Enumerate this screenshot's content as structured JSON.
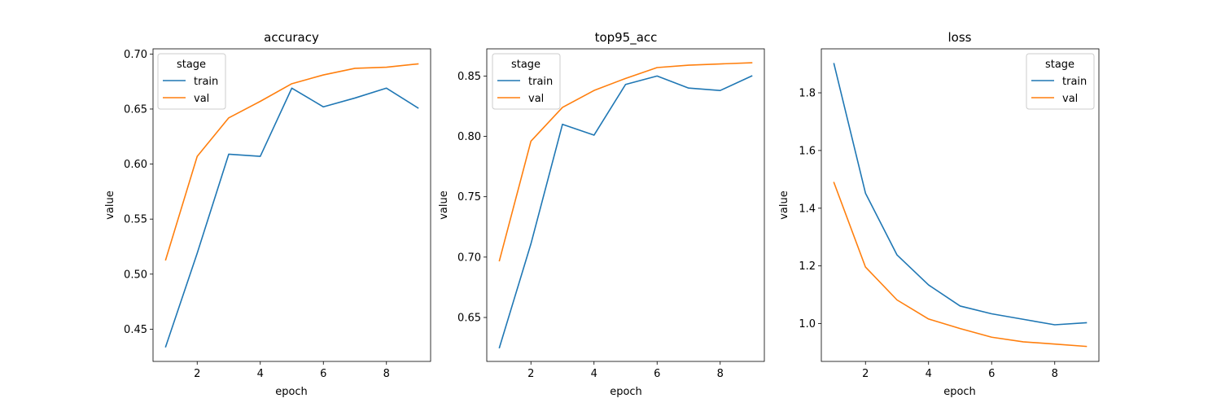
{
  "chart_data": [
    {
      "type": "line",
      "title": "accuracy",
      "xlabel": "epoch",
      "ylabel": "value",
      "xlim": [
        0.6,
        9.4
      ],
      "ylim": [
        0.4207,
        0.7047
      ],
      "xticks": [
        2,
        4,
        6,
        8
      ],
      "yticks": [
        0.45,
        0.5,
        0.55,
        0.6,
        0.65,
        0.7
      ],
      "ytick_labels": [
        "0.45",
        "0.50",
        "0.55",
        "0.60",
        "0.65",
        "0.70"
      ],
      "grid": false,
      "legend": {
        "title": "stage",
        "placement": "top-left"
      },
      "x": [
        1,
        2,
        3,
        4,
        5,
        6,
        7,
        8,
        9
      ],
      "series": [
        {
          "name": "train",
          "color": "#1f77b4",
          "values": [
            0.434,
            0.519,
            0.609,
            0.607,
            0.669,
            0.652,
            0.66,
            0.669,
            0.651
          ]
        },
        {
          "name": "val",
          "color": "#ff7f0e",
          "values": [
            0.513,
            0.607,
            0.642,
            0.657,
            0.673,
            0.681,
            0.687,
            0.688,
            0.691
          ]
        }
      ]
    },
    {
      "type": "line",
      "title": "top95_acc",
      "xlabel": "epoch",
      "ylabel": "value",
      "xlim": [
        0.6,
        9.4
      ],
      "ylim": [
        0.6136,
        0.8725
      ],
      "xticks": [
        2,
        4,
        6,
        8
      ],
      "yticks": [
        0.65,
        0.7,
        0.75,
        0.8,
        0.85
      ],
      "ytick_labels": [
        "0.65",
        "0.70",
        "0.75",
        "0.80",
        "0.85"
      ],
      "grid": false,
      "legend": {
        "title": "stage",
        "placement": "top-left"
      },
      "x": [
        1,
        2,
        3,
        4,
        5,
        6,
        7,
        8,
        9
      ],
      "series": [
        {
          "name": "train",
          "color": "#1f77b4",
          "values": [
            0.625,
            0.711,
            0.81,
            0.801,
            0.843,
            0.85,
            0.84,
            0.838,
            0.85
          ]
        },
        {
          "name": "val",
          "color": "#ff7f0e",
          "values": [
            0.697,
            0.796,
            0.824,
            0.838,
            0.848,
            0.857,
            0.859,
            0.86,
            0.861
          ]
        }
      ]
    },
    {
      "type": "line",
      "title": "loss",
      "xlabel": "epoch",
      "ylabel": "value",
      "xlim": [
        0.6,
        9.4
      ],
      "ylim": [
        0.869,
        1.9524
      ],
      "xticks": [
        2,
        4,
        6,
        8
      ],
      "yticks": [
        1.0,
        1.2,
        1.4,
        1.6,
        1.8
      ],
      "ytick_labels": [
        "1.0",
        "1.2",
        "1.4",
        "1.6",
        "1.8"
      ],
      "grid": false,
      "legend": {
        "title": "stage",
        "placement": "top-right"
      },
      "x": [
        1,
        2,
        3,
        4,
        5,
        6,
        7,
        8,
        9
      ],
      "series": [
        {
          "name": "train",
          "color": "#1f77b4",
          "values": [
            1.901,
            1.452,
            1.238,
            1.134,
            1.061,
            1.034,
            1.015,
            0.996,
            1.003
          ]
        },
        {
          "name": "val",
          "color": "#ff7f0e",
          "values": [
            1.489,
            1.196,
            1.082,
            1.016,
            0.983,
            0.953,
            0.937,
            0.929,
            0.921
          ]
        }
      ]
    }
  ]
}
